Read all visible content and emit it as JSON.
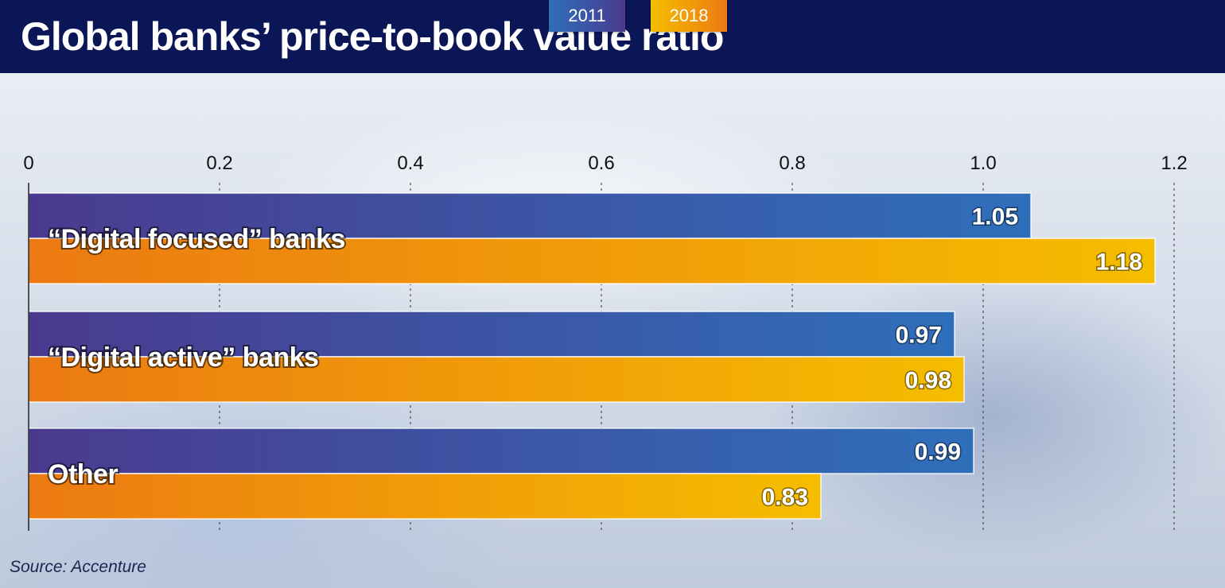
{
  "header": {
    "title": "Global banks’ price-to-book value ratio"
  },
  "source": "Source: Accenture",
  "colors": {
    "s2011_start": "#4a3a8f",
    "s2011_end": "#2f6fba",
    "s2018_start": "#ec7a12",
    "s2018_end": "#f5bd00",
    "header_bg": "#0b1656"
  },
  "chart_data": {
    "type": "bar",
    "orientation": "horizontal",
    "categories": [
      "“Digital focused” banks",
      "“Digital active” banks",
      "Other"
    ],
    "series": [
      {
        "name": "2011",
        "values": [
          1.05,
          0.97,
          0.99
        ]
      },
      {
        "name": "2018",
        "values": [
          1.18,
          0.98,
          0.83
        ]
      }
    ],
    "value_labels": [
      [
        "1.05",
        "0.97",
        "0.99"
      ],
      [
        "1.18",
        "0.98",
        "0.83"
      ]
    ],
    "ticks": [
      0,
      0.2,
      0.4,
      0.6,
      0.8,
      1.0,
      1.2
    ],
    "tick_labels": [
      "0",
      "0.2",
      "0.4",
      "0.6",
      "0.8",
      "1.0",
      "1.2"
    ],
    "xlim": [
      0,
      1.2
    ],
    "grid": true,
    "legend": "top-center"
  }
}
